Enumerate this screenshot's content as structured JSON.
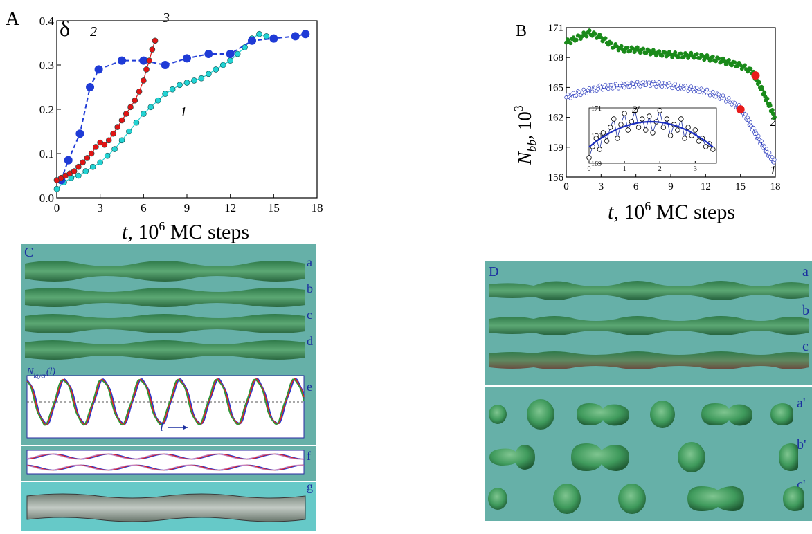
{
  "panel_labels": {
    "A": "A",
    "B": "B",
    "C": "C",
    "D": "D"
  },
  "chart_data": [
    {
      "panel": "A",
      "type": "scatter",
      "ylabel": "δ",
      "xlabel_prefix": "t",
      "xlabel_rest": ", 10",
      "xlabel_exp": "6",
      "xlabel_unit": " MC steps",
      "xlim": [
        0,
        18
      ],
      "ylim": [
        0,
        0.4
      ],
      "xticks": [
        "0",
        "3",
        "6",
        "9",
        "12",
        "15",
        "18"
      ],
      "yticks": [
        "0.0",
        "0.1",
        "0.2",
        "0.3",
        "0.4"
      ],
      "series": [
        {
          "name": "1",
          "color": "#22d3d3",
          "style": "points-line",
          "x": [
            0,
            0.5,
            1,
            1.5,
            2,
            2.5,
            3,
            3.5,
            4,
            4.5,
            5,
            5.5,
            6,
            6.5,
            7,
            7.5,
            8,
            8.5,
            9,
            9.5,
            10,
            10.5,
            11,
            11.5,
            12,
            12.5,
            13,
            13.5,
            14,
            14.5,
            15
          ],
          "y": [
            0.02,
            0.035,
            0.045,
            0.05,
            0.06,
            0.07,
            0.08,
            0.095,
            0.11,
            0.13,
            0.15,
            0.17,
            0.19,
            0.205,
            0.22,
            0.235,
            0.245,
            0.255,
            0.26,
            0.265,
            0.27,
            0.28,
            0.29,
            0.3,
            0.31,
            0.325,
            0.34,
            0.36,
            0.37,
            0.365,
            0.36
          ]
        },
        {
          "name": "2",
          "color": "#1f3bd6",
          "style": "dashed",
          "x": [
            0.3,
            0.8,
            1.6,
            2.3,
            2.9,
            4.5,
            6.0,
            7.5,
            9.0,
            10.5,
            12.0,
            13.5,
            15.0,
            16.5,
            17.2
          ],
          "y": [
            0.04,
            0.085,
            0.145,
            0.25,
            0.29,
            0.31,
            0.31,
            0.3,
            0.315,
            0.325,
            0.325,
            0.355,
            0.36,
            0.365,
            0.37
          ]
        },
        {
          "name": "3",
          "color": "#e11414",
          "style": "points-line",
          "x": [
            0,
            0.3,
            0.6,
            0.9,
            1.2,
            1.5,
            1.8,
            2.1,
            2.4,
            2.7,
            3.0,
            3.3,
            3.6,
            3.9,
            4.2,
            4.5,
            4.8,
            5.1,
            5.4,
            5.7,
            6.0,
            6.2,
            6.4,
            6.6,
            6.8
          ],
          "y": [
            0.04,
            0.045,
            0.05,
            0.055,
            0.06,
            0.07,
            0.08,
            0.09,
            0.1,
            0.115,
            0.125,
            0.12,
            0.13,
            0.145,
            0.16,
            0.175,
            0.19,
            0.205,
            0.22,
            0.24,
            0.265,
            0.29,
            0.31,
            0.335,
            0.355
          ]
        }
      ]
    },
    {
      "panel": "B",
      "type": "scatter",
      "ylabel_main": "N",
      "ylabel_sub": "bb",
      "ylabel_rest": ", 10",
      "ylabel_exp": "3",
      "xlabel_prefix": "t",
      "xlabel_rest": ", 10",
      "xlabel_exp": "6",
      "xlabel_unit": " MC steps",
      "xlim": [
        0,
        18
      ],
      "ylim": [
        156,
        171
      ],
      "xticks": [
        "0",
        "3",
        "6",
        "9",
        "12",
        "15",
        "18"
      ],
      "yticks": [
        "156",
        "159",
        "162",
        "165",
        "168",
        "171"
      ],
      "series": [
        {
          "name": "2",
          "color": "#1a8a1a",
          "style": "filled-dots",
          "x": [
            0,
            1,
            2,
            3,
            4,
            5,
            6,
            7,
            8,
            9,
            10,
            11,
            12,
            13,
            14,
            15,
            16,
            16.5,
            17,
            17.5,
            18
          ],
          "y": [
            169.5,
            170.0,
            170.5,
            170.0,
            169.2,
            168.8,
            168.8,
            168.6,
            168.4,
            168.3,
            168.2,
            168.2,
            168.0,
            167.8,
            167.5,
            167.2,
            166.6,
            165.6,
            164.4,
            163.2,
            161.8
          ],
          "marker": {
            "x": 16.3,
            "y": 166.2
          }
        },
        {
          "name": "1",
          "color": "#2233bb",
          "style": "open-dots",
          "x": [
            0,
            1,
            2,
            3,
            4,
            5,
            6,
            7,
            8,
            9,
            10,
            11,
            12,
            13,
            14,
            15,
            15.5,
            16,
            16.5,
            17,
            17.5,
            18
          ],
          "y": [
            164.0,
            164.4,
            164.7,
            165.0,
            165.1,
            165.2,
            165.3,
            165.4,
            165.3,
            165.2,
            165.0,
            164.8,
            164.6,
            164.2,
            163.7,
            162.9,
            162.0,
            161.0,
            160.0,
            159.0,
            158.2,
            157.4
          ],
          "marker": {
            "x": 15.0,
            "y": 162.8
          }
        }
      ],
      "series_labels": [
        "2",
        "1"
      ],
      "inset": {
        "series_name": "2'",
        "xlim": [
          0,
          3.6
        ],
        "ylim": [
          169,
          171
        ],
        "xticks": [
          "0",
          "1",
          "2",
          "3"
        ],
        "yticks": [
          "169",
          "170",
          "171"
        ],
        "x": [
          0.0,
          0.1,
          0.2,
          0.3,
          0.4,
          0.5,
          0.6,
          0.7,
          0.8,
          0.9,
          1.0,
          1.1,
          1.2,
          1.3,
          1.4,
          1.5,
          1.6,
          1.7,
          1.8,
          1.9,
          2.0,
          2.1,
          2.2,
          2.3,
          2.4,
          2.5,
          2.6,
          2.7,
          2.8,
          2.9,
          3.0,
          3.1,
          3.2,
          3.3,
          3.4,
          3.5
        ],
        "y": [
          169.2,
          169.6,
          169.9,
          169.5,
          170.1,
          169.8,
          170.3,
          170.6,
          169.9,
          170.4,
          170.8,
          170.2,
          170.5,
          170.9,
          170.3,
          170.6,
          170.2,
          170.7,
          170.1,
          170.5,
          170.9,
          170.3,
          170.6,
          170.0,
          170.4,
          170.2,
          170.6,
          169.9,
          170.3,
          170.0,
          170.2,
          169.8,
          169.9,
          169.6,
          169.7,
          169.5
        ],
        "fit_color": "#1a2dbf"
      }
    }
  ],
  "panel_C": {
    "row_labels": [
      "a",
      "b",
      "c",
      "d",
      "e",
      "f",
      "g"
    ],
    "profile_ylabel_main": "N",
    "profile_ylabel_sub": "layer",
    "profile_ylabel_arg": "(l)",
    "axis_symbol": "l"
  },
  "panel_D": {
    "row_labels": [
      "a",
      "b",
      "c",
      "a'",
      "b'",
      "c'"
    ]
  }
}
